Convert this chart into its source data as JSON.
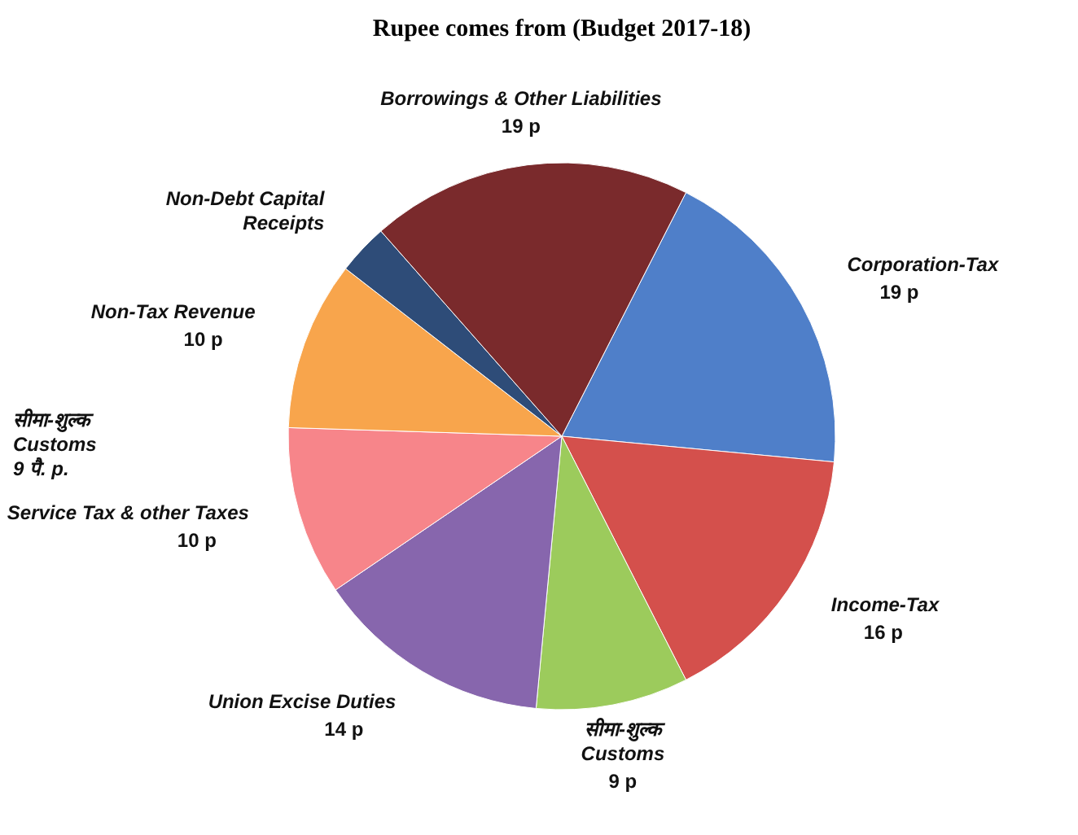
{
  "chart_data": {
    "type": "pie",
    "title": "Rupee comes from (Budget 2017-18)",
    "categories": [
      "Corporation-Tax",
      "Income-Tax",
      "सीमा-शुल्क\nCustoms",
      "Union Excise Duties",
      "Service Tax & other Taxes",
      "Non-Tax Revenue",
      "Non-Debt Capital\nReceipts",
      "Borrowings & Other Liabilities"
    ],
    "values": [
      19,
      16,
      9,
      14,
      10,
      10,
      3,
      19
    ],
    "value_labels": [
      "19 p",
      "16 p",
      "9 p",
      "14 p",
      "10 p",
      "10 p",
      null,
      "19 p"
    ],
    "colors": [
      "#4f7fc9",
      "#d4504c",
      "#9ccb5c",
      "#8766ad",
      "#f7858a",
      "#f8a54c",
      "#2e4c78",
      "#7a2a2c"
    ],
    "annotations": [
      "सीमा-शुल्क\nCustoms\n9 पै. p."
    ]
  }
}
